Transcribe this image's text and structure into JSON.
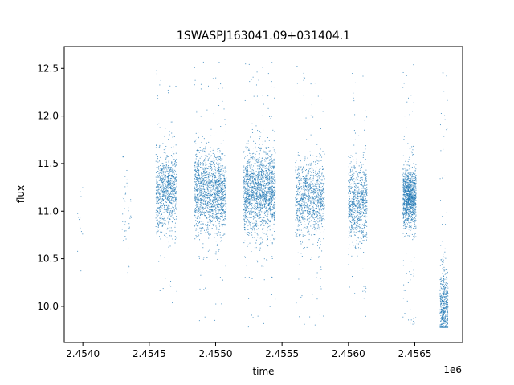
{
  "chart_data": {
    "type": "scatter",
    "title": "1SWASPJ163041.09+031404.1",
    "xlabel": "time",
    "ylabel": "flux",
    "x_offset_label": "1e6",
    "xlim": [
      2.45386,
      2.45686
    ],
    "ylim": [
      9.62,
      12.73
    ],
    "x_ticks": [
      2.454,
      2.4545,
      2.455,
      2.4555,
      2.456,
      2.4565
    ],
    "x_tick_labels": [
      "2.4540",
      "2.4545",
      "2.4550",
      "2.4555",
      "2.4560",
      "2.4565"
    ],
    "y_ticks": [
      10.0,
      10.5,
      11.0,
      11.5,
      12.0,
      12.5
    ],
    "y_tick_labels": [
      "10.0",
      "10.5",
      "11.0",
      "11.5",
      "12.0",
      "12.5"
    ],
    "grid": false,
    "legend": "none",
    "point_color": "#1f77b4",
    "series": [
      {
        "clusters": [
          {
            "x_center": 2.45398,
            "x_width": 2e-05,
            "y_center": 11.0,
            "y_spread": 0.3,
            "y_min": 10.35,
            "y_max": 11.5,
            "count": 12
          },
          {
            "x_center": 2.45433,
            "x_width": 4e-05,
            "y_center": 11.0,
            "y_spread": 0.35,
            "y_min": 9.8,
            "y_max": 11.57,
            "count": 40
          },
          {
            "x_center": 2.45463,
            "x_width": 8e-05,
            "y_center": 11.2,
            "y_spread": 0.2,
            "y_min": 10.0,
            "y_max": 12.55,
            "count": 900
          },
          {
            "x_center": 2.45496,
            "x_width": 0.00012,
            "y_center": 11.2,
            "y_spread": 0.22,
            "y_min": 9.8,
            "y_max": 12.6,
            "count": 1500
          },
          {
            "x_center": 2.45533,
            "x_width": 0.00012,
            "y_center": 11.2,
            "y_spread": 0.22,
            "y_min": 9.78,
            "y_max": 12.6,
            "count": 1700
          },
          {
            "x_center": 2.45571,
            "x_width": 0.00011,
            "y_center": 11.15,
            "y_spread": 0.2,
            "y_min": 9.8,
            "y_max": 12.55,
            "count": 1000
          },
          {
            "x_center": 2.45607,
            "x_width": 7e-05,
            "y_center": 11.1,
            "y_spread": 0.2,
            "y_min": 9.8,
            "y_max": 12.5,
            "count": 800
          },
          {
            "x_center": 2.45646,
            "x_width": 5e-05,
            "y_center": 11.15,
            "y_spread": 0.16,
            "y_min": 9.8,
            "y_max": 12.55,
            "count": 1100
          },
          {
            "x_center": 2.45672,
            "x_width": 3e-05,
            "y_center": 10.0,
            "y_spread": 0.2,
            "y_min": 9.78,
            "y_max": 12.55,
            "count": 500
          }
        ]
      }
    ]
  }
}
